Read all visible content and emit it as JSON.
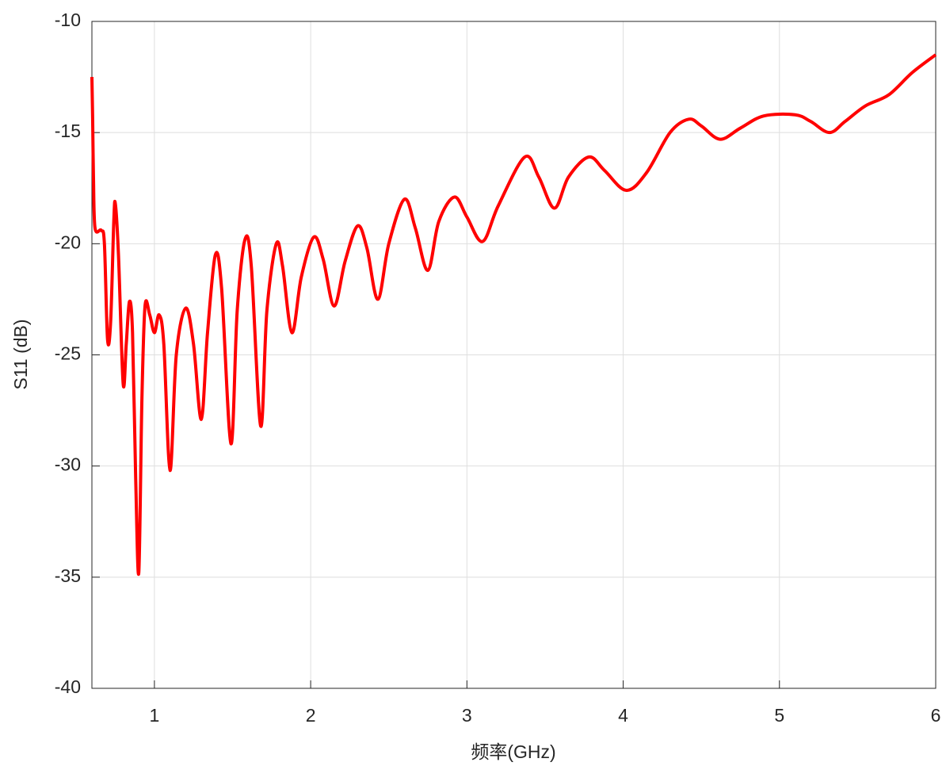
{
  "chart_data": {
    "type": "line",
    "x_label": "频率(GHz)",
    "y_label": "S11 (dB)",
    "xlim": [
      0.6,
      6
    ],
    "ylim": [
      -40,
      -10
    ],
    "xticks": [
      1,
      2,
      3,
      4,
      5,
      6
    ],
    "yticks": [
      -40,
      -35,
      -30,
      -25,
      -20,
      -15,
      -10
    ],
    "grid": true,
    "x": [
      0.6,
      0.605,
      0.61,
      0.62,
      0.66,
      0.68,
      0.7,
      0.72,
      0.74,
      0.75,
      0.77,
      0.8,
      0.82,
      0.84,
      0.86,
      0.88,
      0.9,
      0.92,
      0.94,
      0.97,
      1.0,
      1.03,
      1.06,
      1.1,
      1.14,
      1.2,
      1.25,
      1.3,
      1.34,
      1.39,
      1.43,
      1.49,
      1.53,
      1.58,
      1.62,
      1.68,
      1.72,
      1.78,
      1.82,
      1.88,
      1.94,
      2.02,
      2.08,
      2.15,
      2.22,
      2.3,
      2.36,
      2.43,
      2.5,
      2.6,
      2.67,
      2.75,
      2.82,
      2.92,
      3.0,
      3.1,
      3.2,
      3.37,
      3.46,
      3.56,
      3.65,
      3.78,
      3.88,
      4.02,
      4.15,
      4.3,
      4.42,
      4.5,
      4.62,
      4.75,
      4.9,
      5.1,
      5.2,
      5.32,
      5.42,
      5.55,
      5.7,
      5.85,
      6.0
    ],
    "series": [
      {
        "name": "S11",
        "color": "#ff0000",
        "values": [
          -12.5,
          -14.5,
          -17,
          -19.3,
          -19.4,
          -20,
          -24.3,
          -23.5,
          -19,
          -18.2,
          -20.5,
          -26.3,
          -24.5,
          -22.6,
          -24,
          -30.5,
          -34.8,
          -27,
          -22.8,
          -23.2,
          -24,
          -23.2,
          -24.5,
          -30.2,
          -25,
          -22.9,
          -24.5,
          -27.9,
          -24,
          -20.5,
          -22,
          -29,
          -23,
          -19.8,
          -21,
          -28.2,
          -23,
          -20,
          -21,
          -24,
          -21.5,
          -19.7,
          -20.7,
          -22.8,
          -20.8,
          -19.2,
          -20.2,
          -22.5,
          -20,
          -18,
          -19.3,
          -21.2,
          -19,
          -17.9,
          -18.8,
          -19.9,
          -18.3,
          -16.1,
          -17,
          -18.4,
          -17,
          -16.1,
          -16.7,
          -17.6,
          -16.8,
          -15,
          -14.4,
          -14.7,
          -15.3,
          -14.8,
          -14.25,
          -14.2,
          -14.5,
          -15,
          -14.5,
          -13.8,
          -13.3,
          -12.3,
          -11.5
        ]
      }
    ]
  }
}
